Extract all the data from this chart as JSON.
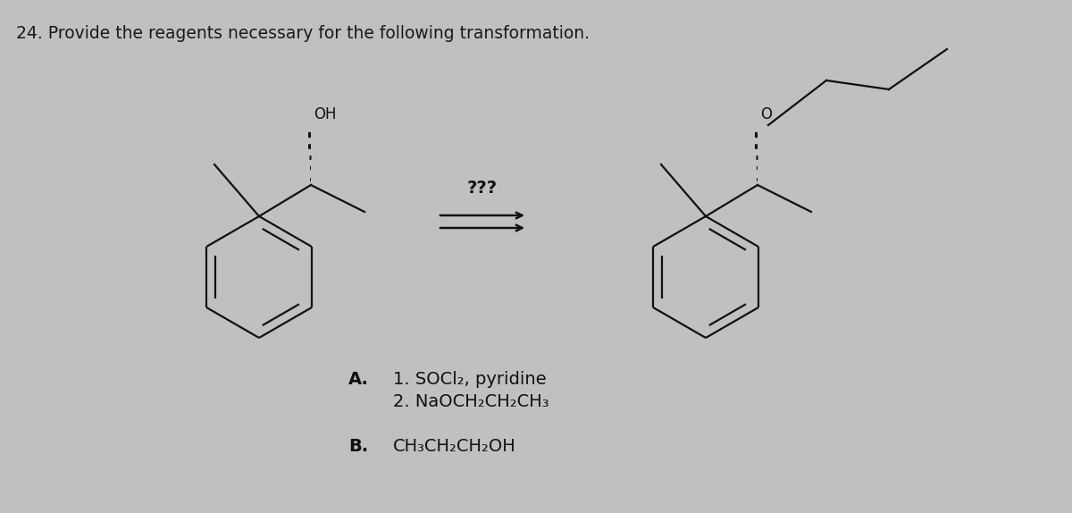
{
  "title": "24. Provide the reagents necessary for the following transformation.",
  "background_color": "#c0c0c0",
  "text_color": "#1a1a1a",
  "molecule_color": "#111111",
  "lw": 1.6,
  "answer_A_label": "A.",
  "answer_A_line1": "1. SOCl₂, pyridine",
  "answer_A_line2": "2. NaOCH₂CH₂CH₃",
  "answer_B_label": "B.",
  "answer_B_text": "CH₃CH₂CH₂OH"
}
